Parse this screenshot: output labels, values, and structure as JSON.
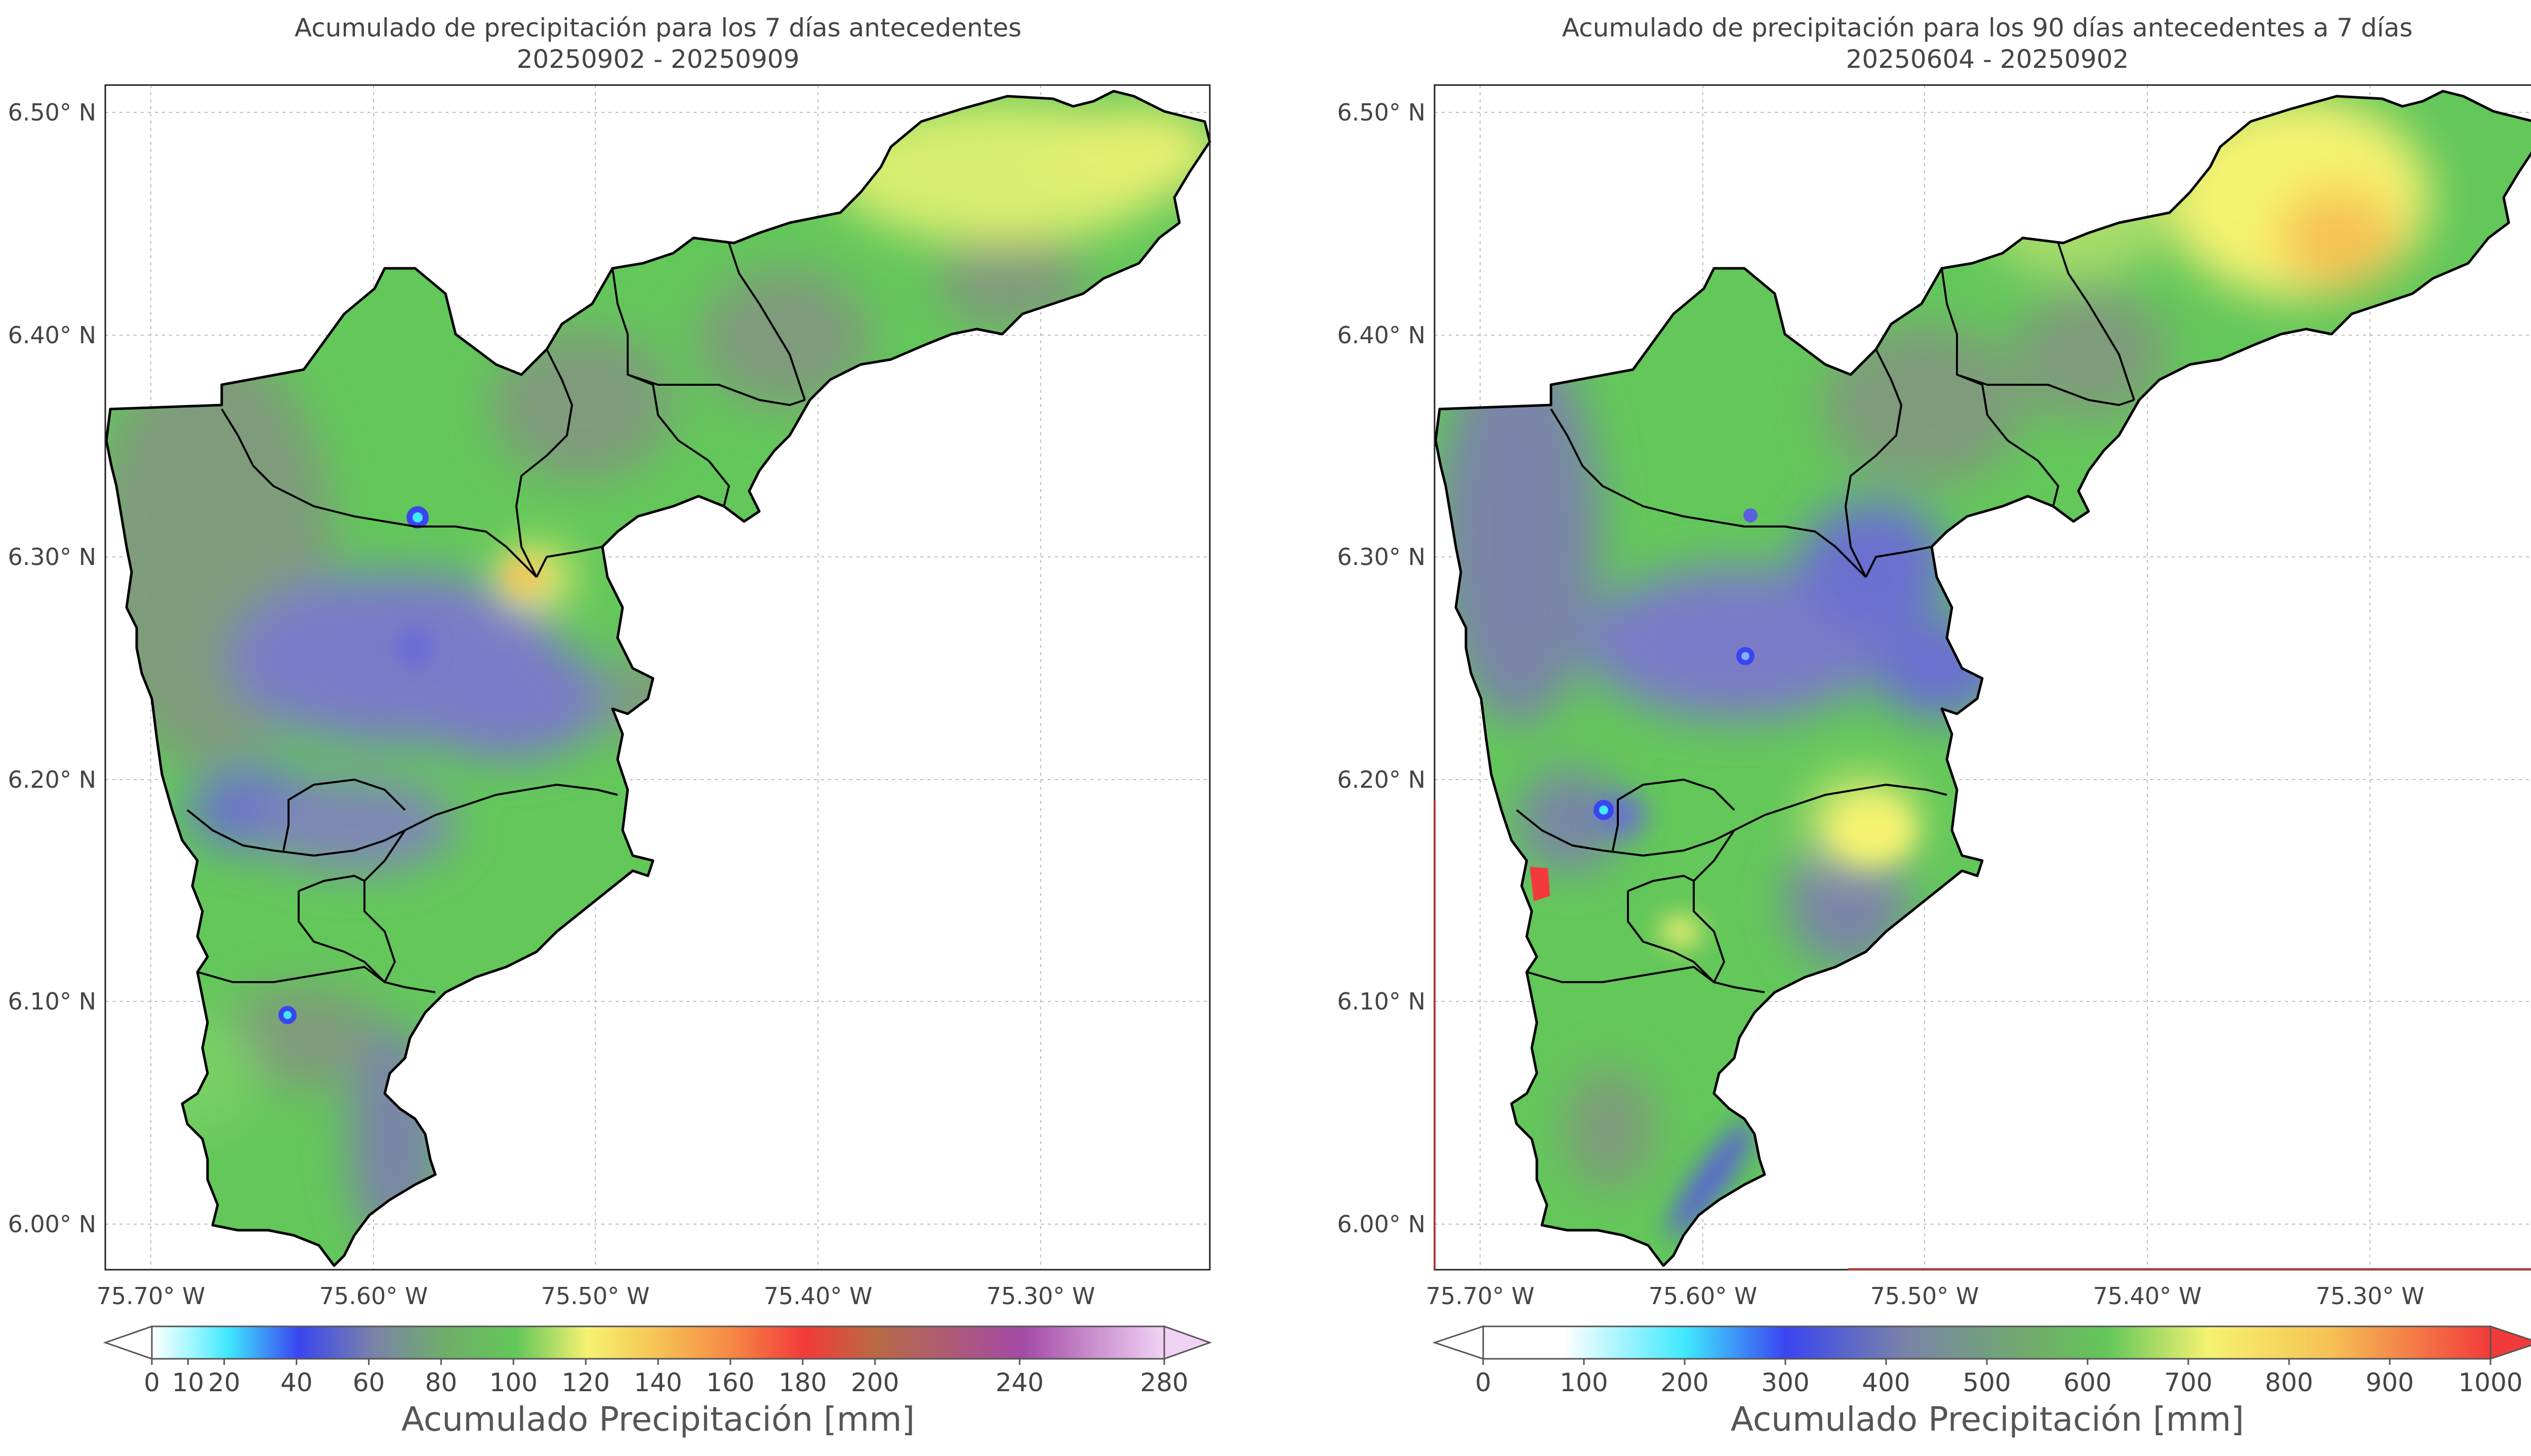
{
  "colors": {
    "green": "#63c75a",
    "gray_green": "#7f9b7c",
    "purple_blue": "#7a7bc7",
    "yellow": "#f5f271",
    "orange": "#f6c255",
    "red": "#f23a3a",
    "cyan": "#40e8ff",
    "blue": "#3a45f0"
  },
  "maps": [
    {
      "title_line1": "Acumulado de precipitación para los 7 días antecedentes",
      "title_line2": "20250902 - 20250909",
      "lat_ticks": [
        "6.50° N",
        "6.40° N",
        "6.30° N",
        "6.20° N",
        "6.10° N",
        "6.00° N"
      ],
      "lon_ticks": [
        "75.70° W",
        "75.60° W",
        "75.50° W",
        "75.40° W",
        "75.30° W"
      ],
      "colorbar": {
        "label": "Acumulado Precipitación [mm]",
        "ticks": [
          "0",
          "10",
          "20",
          "40",
          "60",
          "80",
          "100",
          "120",
          "140",
          "160",
          "180",
          "200",
          "240",
          "280"
        ],
        "tick_values": [
          0,
          10,
          20,
          40,
          60,
          80,
          100,
          120,
          140,
          160,
          180,
          200,
          240,
          280
        ],
        "range": [
          0,
          280
        ],
        "extend": "both"
      }
    },
    {
      "title_line1": "Acumulado de precipitación para los 90 días antecedentes a 7 días",
      "title_line2": "20250604 - 20250902",
      "lat_ticks": [
        "6.50° N",
        "6.40° N",
        "6.30° N",
        "6.20° N",
        "6.10° N",
        "6.00° N"
      ],
      "lon_ticks": [
        "75.70° W",
        "75.60° W",
        "75.50° W",
        "75.40° W",
        "75.30° W"
      ],
      "colorbar": {
        "label": "Acumulado Precipitación [mm]",
        "ticks": [
          "0",
          "100",
          "200",
          "300",
          "400",
          "500",
          "600",
          "700",
          "800",
          "900",
          "1000"
        ],
        "tick_values": [
          0,
          100,
          200,
          300,
          400,
          500,
          600,
          700,
          800,
          900,
          1000
        ],
        "range": [
          0,
          1000
        ],
        "extend": "max"
      }
    }
  ]
}
